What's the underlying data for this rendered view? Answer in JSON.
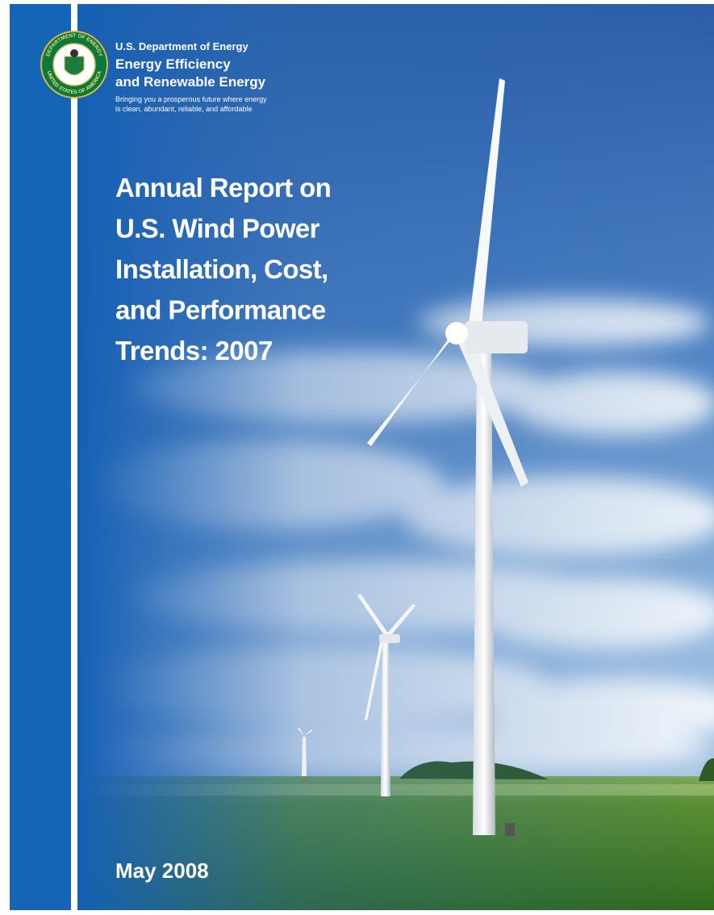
{
  "header": {
    "agency": "U.S. Department of Energy",
    "office_line_1": "Energy Efficiency",
    "office_line_2": "and Renewable Energy",
    "tagline_line_1": "Bringing you a prosperous future where energy",
    "tagline_line_2": "is clean, abundant, reliable, and affordable"
  },
  "seal": {
    "top": "DEPARTMENT OF ENERGY",
    "bottom": "UNITED STATES OF AMERICA"
  },
  "title": {
    "lines": [
      "Annual Report on",
      "U.S. Wind Power",
      "Installation, Cost,",
      "and Performance",
      "Trends: 2007"
    ]
  },
  "date": "May 2008"
}
